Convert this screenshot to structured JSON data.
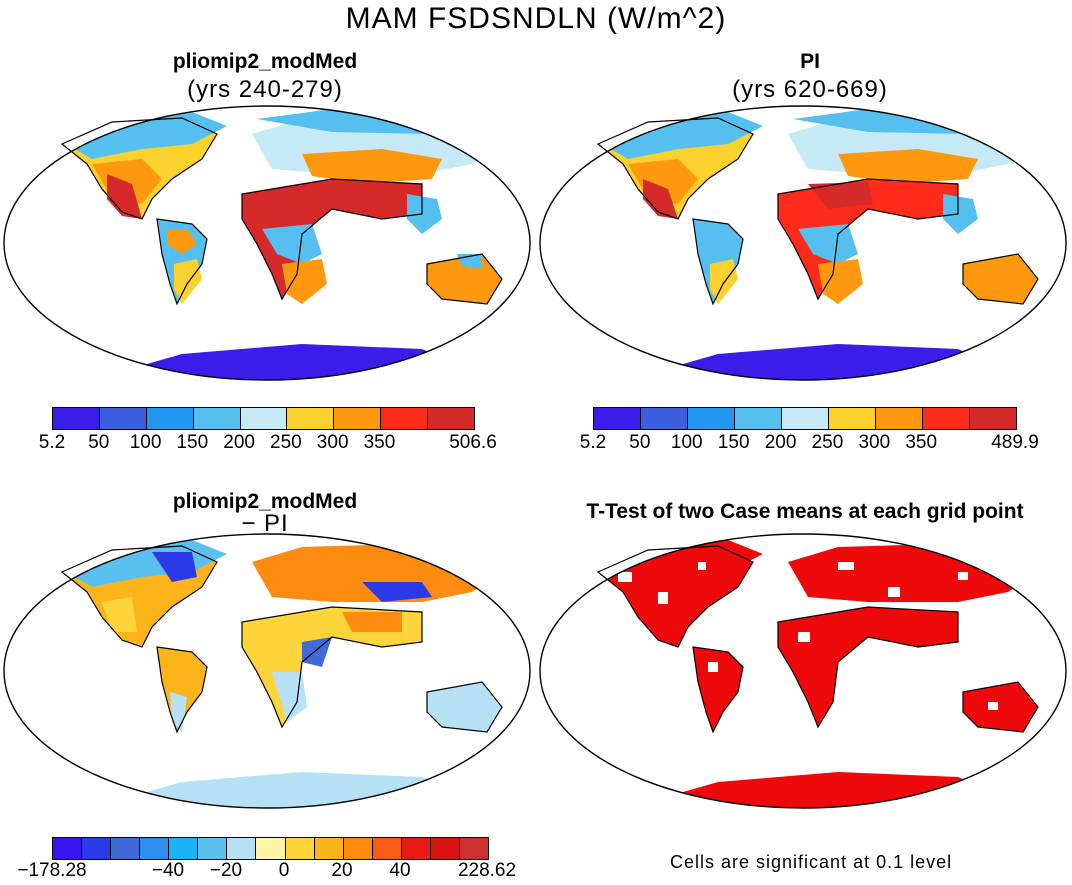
{
  "title": "MAM FSDSNDLN (W/m^2)",
  "panels": {
    "top_left": {
      "title": "pliomip2_modMed",
      "subtitle": "(yrs 240-279)"
    },
    "top_right": {
      "title": "PI",
      "subtitle": "(yrs 620-669)"
    },
    "bottom_left": {
      "title": "pliomip2_modMed",
      "subtitle": "− PI"
    },
    "bottom_right": {
      "title": "T-Test of two Case means at each grid point"
    }
  },
  "colorbars": {
    "abs_left": {
      "colors": [
        "#3a1de8",
        "#3c5fe0",
        "#2196f3",
        "#55bff0",
        "#c6e9f6",
        "#fbd12e",
        "#fe990f",
        "#fe2a1a",
        "#d62a2a"
      ],
      "labels": [
        "5.2",
        "50",
        "100",
        "150",
        "200",
        "250",
        "300",
        "350",
        "506.6"
      ]
    },
    "abs_right": {
      "colors": [
        "#3a1de8",
        "#3c5fe0",
        "#2196f3",
        "#55bff0",
        "#c6e9f6",
        "#fbd12e",
        "#fe990f",
        "#fe2a1a",
        "#d62a2a"
      ],
      "labels": [
        "5.2",
        "50",
        "100",
        "150",
        "200",
        "250",
        "300",
        "350",
        "489.9"
      ]
    },
    "diff": {
      "colors": [
        "#3a14f0",
        "#2a3ae6",
        "#3f6ad8",
        "#2d8ef0",
        "#1bb3f5",
        "#5cc0ee",
        "#b6e0f4",
        "#fff5a8",
        "#fdd53a",
        "#fdb41b",
        "#fc8b10",
        "#f95a14",
        "#e61c14",
        "#d91414",
        "#cc3030"
      ],
      "labels": [
        "−178.28",
        "−40",
        "−20",
        "0",
        "20",
        "40",
        "228.62"
      ]
    }
  },
  "significance_note": "Cells are significant at 0.1 level"
}
